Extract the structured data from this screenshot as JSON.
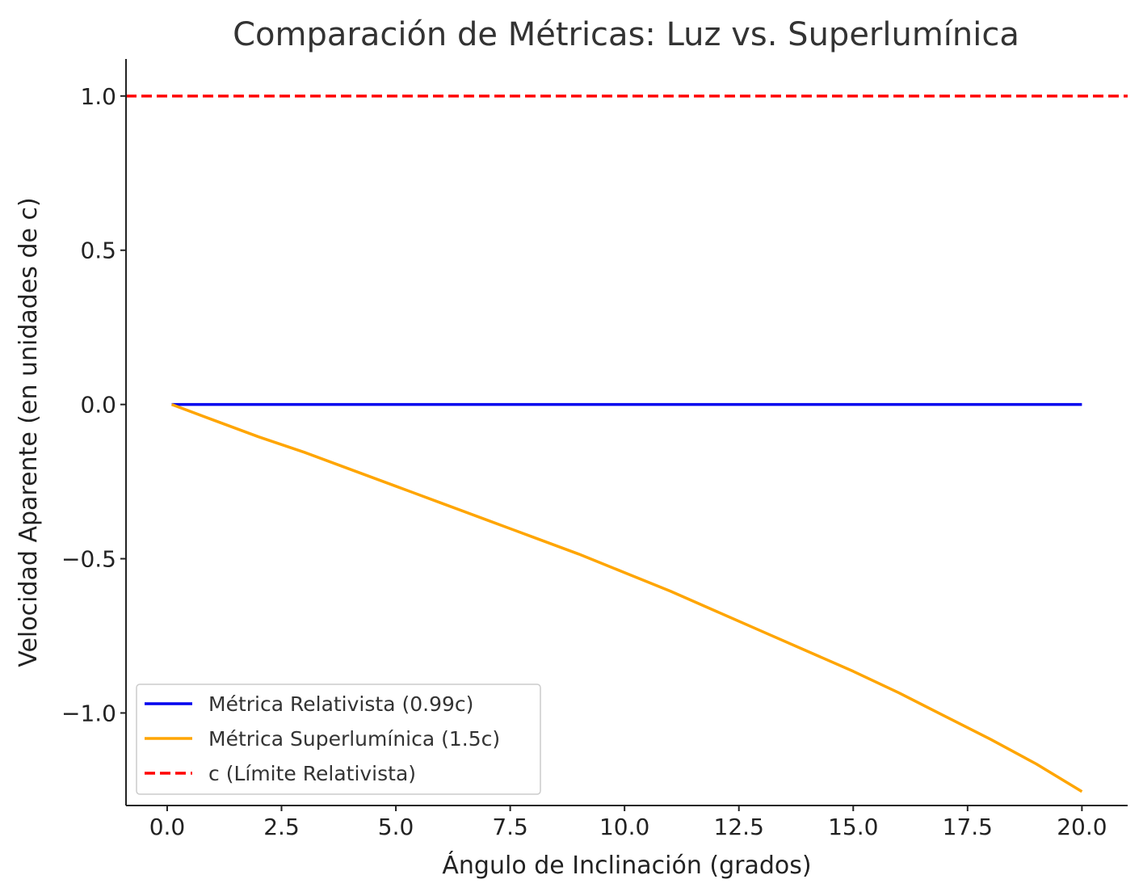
{
  "chart_data": {
    "type": "line",
    "title": "Comparación de Métricas: Luz vs. Superlumínica",
    "xlabel": "Ángulo de Inclinación (grados)",
    "ylabel": "Velocidad Aparente (en unidades de c)",
    "xlim": [
      -0.9,
      21.0
    ],
    "ylim": [
      -1.3,
      1.12
    ],
    "xticks": [
      0.0,
      2.5,
      5.0,
      7.5,
      10.0,
      12.5,
      15.0,
      17.5,
      20.0
    ],
    "xtick_labels": [
      "0.0",
      "2.5",
      "5.0",
      "7.5",
      "10.0",
      "12.5",
      "15.0",
      "17.5",
      "20.0"
    ],
    "yticks": [
      -1.0,
      -0.5,
      0.0,
      0.5,
      1.0
    ],
    "ytick_labels": [
      "−1.0",
      "−0.5",
      "0.0",
      "0.5",
      "1.0"
    ],
    "grid": false,
    "legend_position": "bottom-left",
    "x": [
      0.1,
      1.0,
      2.0,
      3.0,
      4.0,
      5.0,
      6.0,
      7.0,
      8.0,
      9.0,
      10.0,
      11.0,
      12.0,
      13.0,
      14.0,
      15.0,
      16.0,
      17.0,
      18.0,
      19.0,
      20.0
    ],
    "series": [
      {
        "name": "Métrica Relativista (0.99c)",
        "color": "#0000ee",
        "style": "solid",
        "values": [
          0,
          0,
          0,
          0,
          0,
          0,
          0,
          0,
          0,
          0,
          0,
          0,
          0,
          0,
          0,
          0,
          0,
          0,
          0,
          0,
          0
        ]
      },
      {
        "name": "Métrica Superlumínica (1.5c)",
        "color": "#ffa500",
        "style": "solid",
        "values": [
          0.0,
          -0.05,
          -0.105,
          -0.155,
          -0.21,
          -0.265,
          -0.32,
          -0.375,
          -0.43,
          -0.485,
          -0.545,
          -0.605,
          -0.67,
          -0.735,
          -0.8,
          -0.865,
          -0.935,
          -1.01,
          -1.085,
          -1.165,
          -1.255
        ]
      },
      {
        "name": "c (Límite Relativista)",
        "color": "#ff0000",
        "style": "dashed",
        "type": "hline",
        "y": 1.0
      }
    ]
  }
}
